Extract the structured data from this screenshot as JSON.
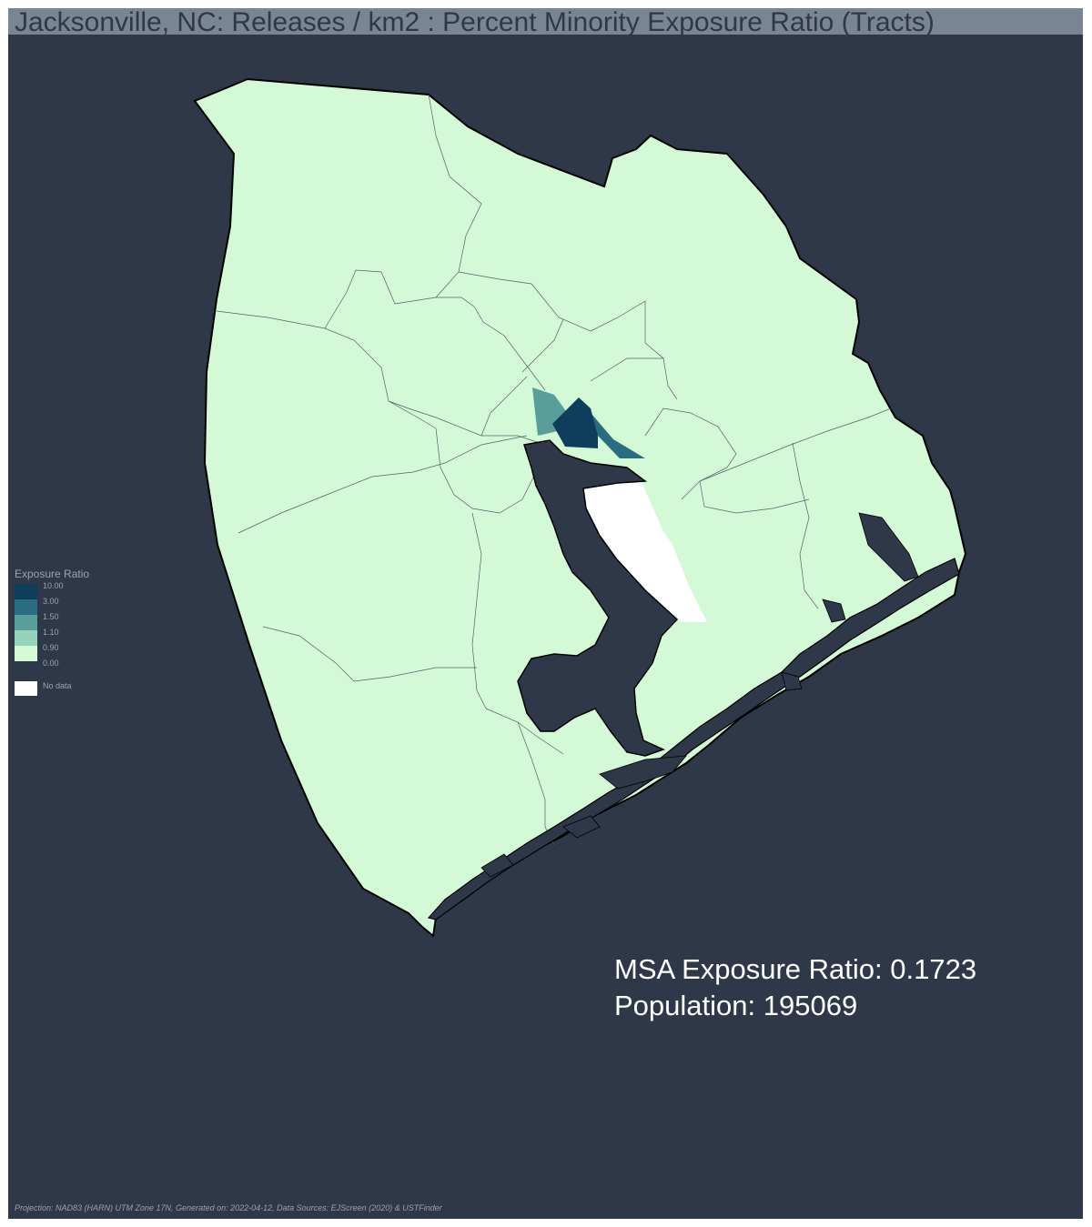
{
  "title": "Jacksonville, NC: Releases / km2 : Percent Minority Exposure Ratio (Tracts)",
  "legend": {
    "title": "Exposure Ratio",
    "classes": [
      {
        "label": "10.00",
        "color": "#0f3d5c"
      },
      {
        "label": "3.00",
        "color": "#2a6d80"
      },
      {
        "label": "1.50",
        "color": "#5a9e9b"
      },
      {
        "label": "1.10",
        "color": "#96d3bc"
      },
      {
        "label": "0.90",
        "color": "#d3f9d6"
      },
      {
        "label": "0.00",
        "color": ""
      }
    ],
    "no_data": {
      "label": "No data",
      "color": "#ffffff"
    }
  },
  "map": {
    "background_color": "#2e3848",
    "land_color": "#d3f9d6",
    "tracts": [
      {
        "exposure_class": "10.00",
        "color": "#0f3d5c"
      },
      {
        "exposure_class": "3.00",
        "color": "#2a6d80"
      },
      {
        "exposure_class": "1.50",
        "color": "#5a9e9b"
      },
      {
        "exposure_class": "No data",
        "color": "#ffffff"
      },
      {
        "exposure_class": "0.90",
        "color": "#d3f9d6"
      }
    ]
  },
  "stats": {
    "exposure_line": "MSA Exposure Ratio: 0.1723",
    "population_line": "Population: 195069"
  },
  "footer": "Projection: NAD83 (HARN) UTM Zone 17N, Generated on: 2022-04-12, Data Sources: EJScreen (2020) & USTFinder"
}
